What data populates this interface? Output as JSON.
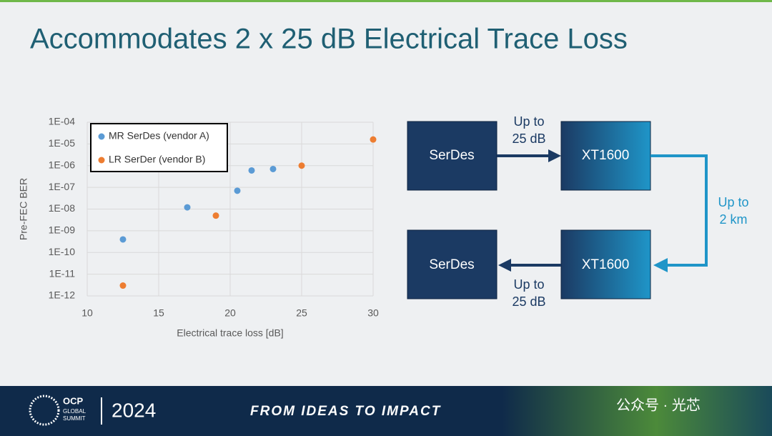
{
  "slide_title": "Accommodates 2 x 25 dB Electrical Trace Loss",
  "chart_data": {
    "type": "scatter",
    "xlabel": "Electrical trace loss [dB]",
    "ylabel": "Pre-FEC BER",
    "xlim": [
      10,
      30
    ],
    "xticks": [
      10,
      15,
      20,
      25,
      30
    ],
    "ylim": [
      1e-12,
      0.0001
    ],
    "log_y": true,
    "grid": true,
    "legend": "top-left",
    "yticks": [
      {
        "value": 1e-12,
        "label": "1E-12"
      },
      {
        "value": 1e-11,
        "label": "1E-11"
      },
      {
        "value": 1e-10,
        "label": "1E-10"
      },
      {
        "value": 1e-09,
        "label": "1E-09"
      },
      {
        "value": 1e-08,
        "label": "1E-08"
      },
      {
        "value": 1e-07,
        "label": "1E-07"
      },
      {
        "value": 1e-06,
        "label": "1E-06"
      },
      {
        "value": 1e-05,
        "label": "1E-05"
      },
      {
        "value": 0.0001,
        "label": "1E-04"
      }
    ],
    "series": [
      {
        "name": "MR SerDes (vendor A)",
        "color": "#5b9bd5",
        "x": [
          12.5,
          17,
          20.5,
          21.5,
          23
        ],
        "values": [
          4e-10,
          1.2e-08,
          7e-08,
          6e-07,
          7e-07
        ]
      },
      {
        "name": "LR SerDer (vendor B)",
        "color": "#ed7d31",
        "x": [
          12.5,
          19,
          25,
          30
        ],
        "values": [
          3e-12,
          5e-09,
          1e-06,
          1.6e-05
        ]
      }
    ]
  },
  "diagram": {
    "nodes": [
      "SerDes",
      "XT1600",
      "XT1600",
      "SerDes"
    ],
    "edges": [
      [
        "Up to",
        "25 dB"
      ],
      [
        "Up to",
        "2 km"
      ],
      [
        "Up to",
        "25 dB"
      ]
    ]
  },
  "footer": {
    "logo": "OCP",
    "logo_sub": [
      "GLOBAL",
      "SUMMIT"
    ],
    "year": "2024",
    "slogan": "FROM IDEAS TO IMPACT",
    "watermark": "公众号 · 光芯"
  }
}
